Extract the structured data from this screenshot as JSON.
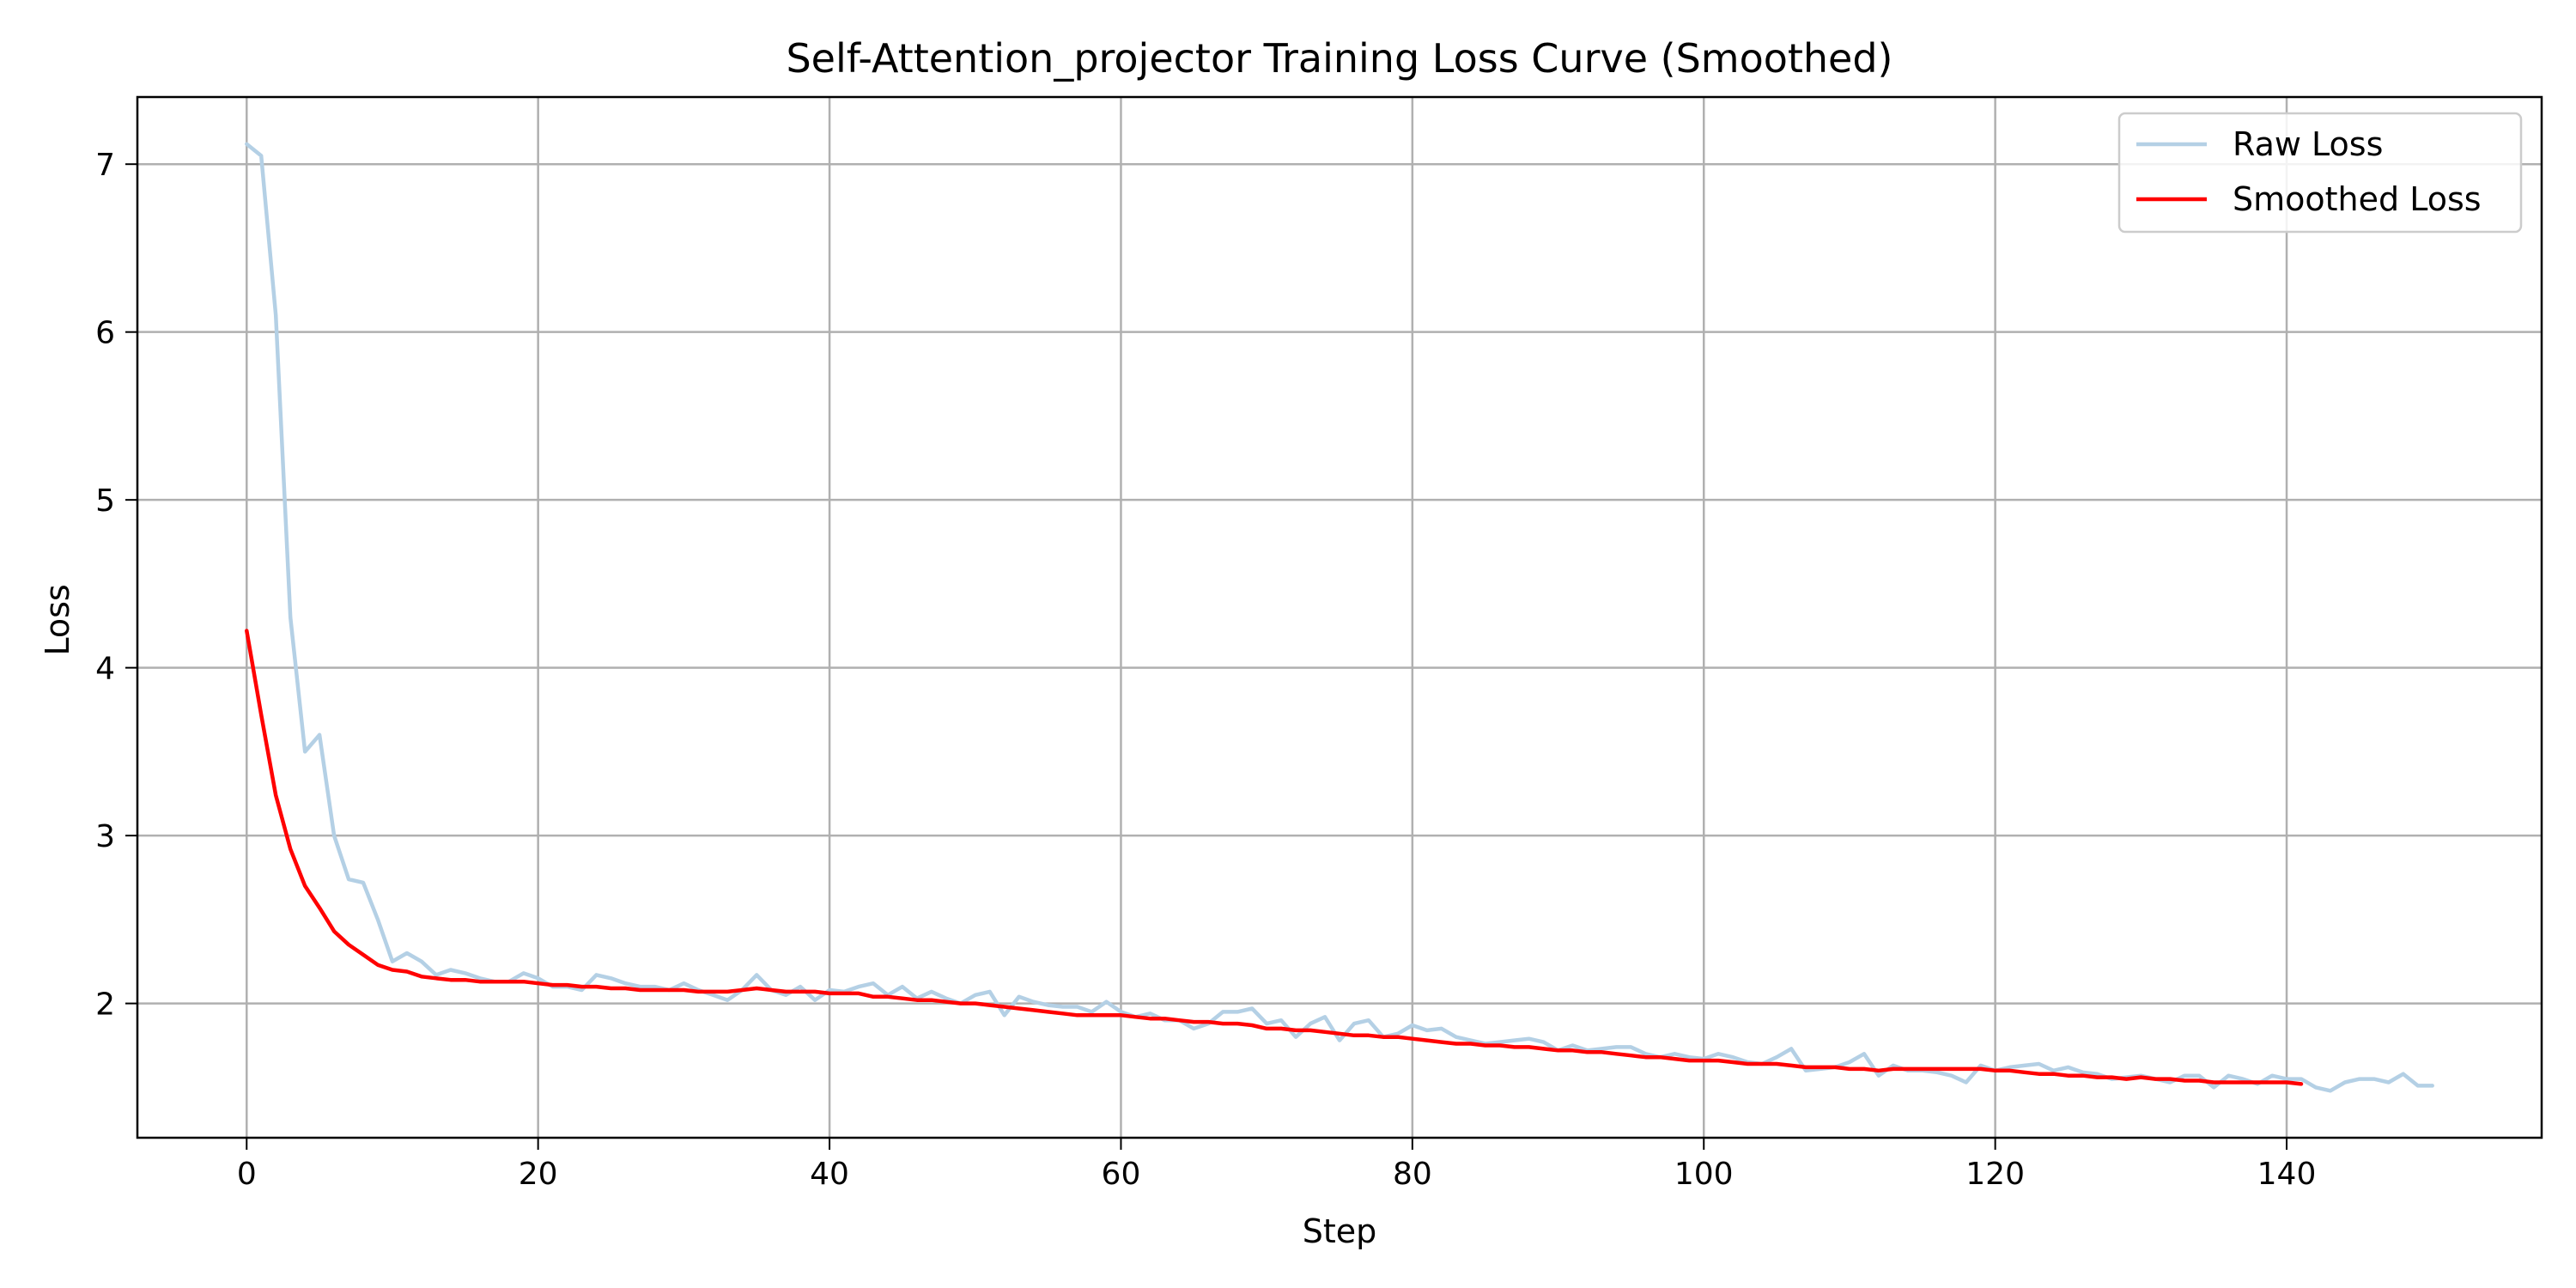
{
  "chart_data": {
    "type": "line",
    "title": "Self-Attention_projector Training Loss Curve (Smoothed)",
    "xlabel": "Step",
    "ylabel": "Loss",
    "xlim": [
      -7.5,
      157.5
    ],
    "ylim": [
      1.2,
      7.4
    ],
    "xticks": [
      0,
      20,
      40,
      60,
      80,
      100,
      120,
      140
    ],
    "yticks": [
      2,
      3,
      4,
      5,
      6,
      7
    ],
    "grid": true,
    "legend_position": "top-right",
    "series": [
      {
        "name": "Raw Loss",
        "color": "#b4d0e5",
        "x_start": 0,
        "values": [
          7.12,
          7.05,
          6.1,
          4.3,
          3.5,
          3.6,
          3.0,
          2.74,
          2.72,
          2.5,
          2.25,
          2.3,
          2.25,
          2.17,
          2.2,
          2.18,
          2.15,
          2.13,
          2.13,
          2.18,
          2.15,
          2.1,
          2.1,
          2.08,
          2.17,
          2.15,
          2.12,
          2.1,
          2.1,
          2.08,
          2.12,
          2.08,
          2.05,
          2.02,
          2.08,
          2.17,
          2.08,
          2.05,
          2.1,
          2.02,
          2.08,
          2.07,
          2.1,
          2.12,
          2.05,
          2.1,
          2.03,
          2.07,
          2.03,
          2.0,
          2.05,
          2.07,
          1.93,
          2.04,
          2.01,
          1.99,
          1.98,
          1.98,
          1.95,
          2.01,
          1.95,
          1.92,
          1.94,
          1.9,
          1.9,
          1.85,
          1.88,
          1.95,
          1.95,
          1.97,
          1.88,
          1.9,
          1.8,
          1.88,
          1.92,
          1.78,
          1.88,
          1.9,
          1.8,
          1.82,
          1.87,
          1.84,
          1.85,
          1.8,
          1.78,
          1.76,
          1.77,
          1.78,
          1.79,
          1.77,
          1.72,
          1.75,
          1.72,
          1.73,
          1.74,
          1.74,
          1.7,
          1.68,
          1.7,
          1.68,
          1.67,
          1.7,
          1.68,
          1.65,
          1.64,
          1.68,
          1.73,
          1.6,
          1.61,
          1.62,
          1.65,
          1.7,
          1.57,
          1.63,
          1.6,
          1.6,
          1.59,
          1.57,
          1.53,
          1.63,
          1.6,
          1.62,
          1.63,
          1.64,
          1.6,
          1.62,
          1.59,
          1.58,
          1.55,
          1.56,
          1.57,
          1.55,
          1.53,
          1.57,
          1.57,
          1.5,
          1.57,
          1.55,
          1.52,
          1.57,
          1.55,
          1.55,
          1.5,
          1.48,
          1.53,
          1.55,
          1.55,
          1.53,
          1.58,
          1.51,
          1.51
        ]
      },
      {
        "name": "Smoothed Loss",
        "color": "#ff0000",
        "x_start": 0,
        "values": [
          4.22,
          3.72,
          3.24,
          2.92,
          2.7,
          2.57,
          2.43,
          2.35,
          2.29,
          2.23,
          2.2,
          2.19,
          2.16,
          2.15,
          2.14,
          2.14,
          2.13,
          2.13,
          2.13,
          2.13,
          2.12,
          2.11,
          2.11,
          2.1,
          2.1,
          2.09,
          2.09,
          2.08,
          2.08,
          2.08,
          2.08,
          2.07,
          2.07,
          2.07,
          2.08,
          2.09,
          2.08,
          2.07,
          2.07,
          2.07,
          2.06,
          2.06,
          2.06,
          2.04,
          2.04,
          2.03,
          2.02,
          2.02,
          2.01,
          2.0,
          2.0,
          1.99,
          1.98,
          1.97,
          1.96,
          1.95,
          1.94,
          1.93,
          1.93,
          1.93,
          1.93,
          1.92,
          1.91,
          1.91,
          1.9,
          1.89,
          1.89,
          1.88,
          1.88,
          1.87,
          1.85,
          1.85,
          1.84,
          1.84,
          1.83,
          1.82,
          1.81,
          1.81,
          1.8,
          1.8,
          1.79,
          1.78,
          1.77,
          1.76,
          1.76,
          1.75,
          1.75,
          1.74,
          1.74,
          1.73,
          1.72,
          1.72,
          1.71,
          1.71,
          1.7,
          1.69,
          1.68,
          1.68,
          1.67,
          1.66,
          1.66,
          1.66,
          1.65,
          1.64,
          1.64,
          1.64,
          1.63,
          1.62,
          1.62,
          1.62,
          1.61,
          1.61,
          1.6,
          1.61,
          1.61,
          1.61,
          1.61,
          1.61,
          1.61,
          1.61,
          1.6,
          1.6,
          1.59,
          1.58,
          1.58,
          1.57,
          1.57,
          1.56,
          1.56,
          1.55,
          1.56,
          1.55,
          1.55,
          1.54,
          1.54,
          1.53,
          1.53,
          1.53,
          1.53,
          1.53,
          1.53,
          1.52
        ]
      }
    ]
  }
}
